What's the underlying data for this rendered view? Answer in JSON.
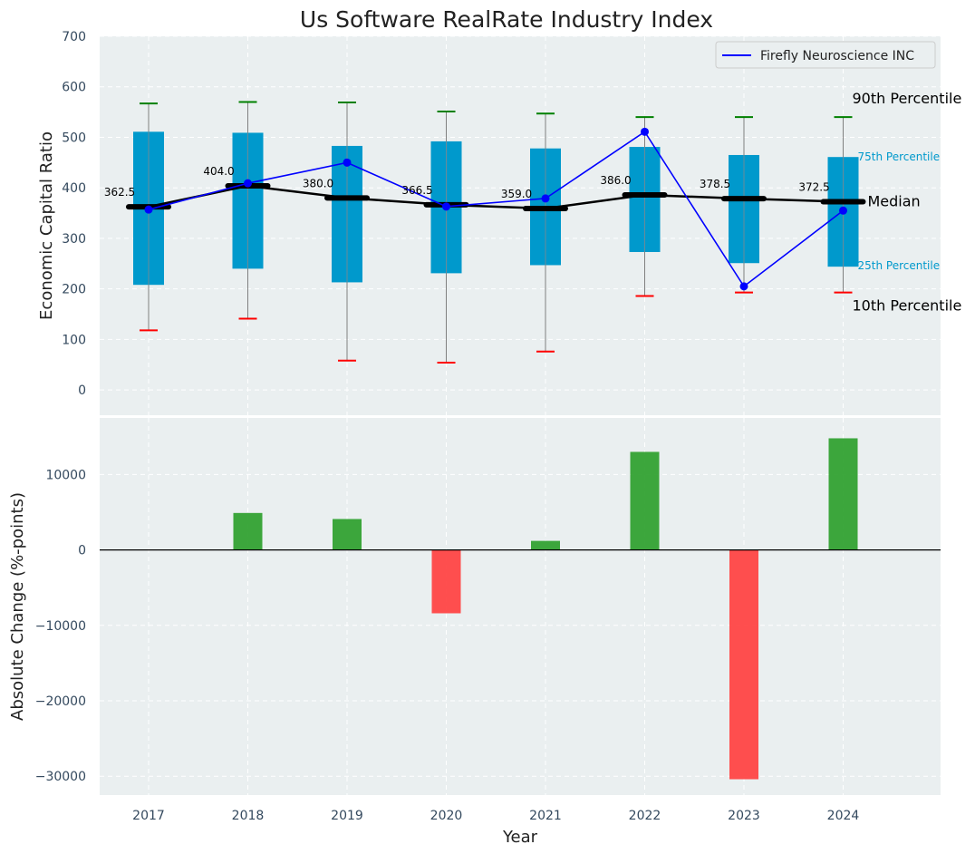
{
  "chart_data": [
    {
      "type": "box",
      "title": "Us Software RealRate Industry Index",
      "xlabel": "",
      "ylabel": "Economic Capital Ratio",
      "ylim": [
        -50,
        700
      ],
      "yticks": [
        0,
        100,
        200,
        300,
        400,
        500,
        600,
        700
      ],
      "categories": [
        "2017",
        "2018",
        "2019",
        "2020",
        "2021",
        "2022",
        "2023",
        "2024"
      ],
      "p10": [
        118,
        141,
        58,
        54,
        76,
        186,
        193,
        193
      ],
      "p25": [
        208,
        240,
        213,
        231,
        247,
        273,
        251,
        244
      ],
      "median": [
        362.5,
        404.0,
        380.0,
        366.5,
        359.0,
        386.0,
        378.5,
        372.5
      ],
      "median_labels": [
        "362.5",
        "404.0",
        "380.0",
        "366.5",
        "359.0",
        "386.0",
        "378.5",
        "372.5"
      ],
      "p75": [
        511,
        509,
        483,
        492,
        478,
        481,
        465,
        461
      ],
      "p90": [
        567,
        570,
        569,
        551,
        547,
        540,
        540,
        540
      ],
      "series": [
        {
          "name": "Firefly Neuroscience INC",
          "values": [
            357,
            409,
            450,
            363,
            379,
            511,
            205,
            355
          ],
          "color": "#0000ff"
        }
      ],
      "percentile_labels": {
        "p90": "90th Percentile",
        "p75": "75th Percentile",
        "median": "Median",
        "p25": "25th Percentile",
        "p10": "10th Percentile"
      },
      "legend_position": "upper-right",
      "grid": true
    },
    {
      "type": "bar",
      "xlabel": "Year",
      "ylabel": "Absolute Change (%-points)",
      "ylim": [
        -32500,
        17500
      ],
      "yticks": [
        -30000,
        -20000,
        -10000,
        0,
        10000
      ],
      "ytick_labels": [
        "−30000",
        "−20000",
        "−10000",
        "0",
        "10000"
      ],
      "categories": [
        "2017",
        "2018",
        "2019",
        "2020",
        "2021",
        "2022",
        "2023",
        "2024"
      ],
      "values": [
        0,
        4900,
        4100,
        -8400,
        1200,
        13000,
        -30400,
        14800
      ],
      "grid": true
    }
  ],
  "colors": {
    "box_fill": "#0099cc",
    "panel_bg": "#eaeff0",
    "median_line": "#000000",
    "p90_cap": "#008000",
    "p10_cap": "#ff0000",
    "whisker": "#808080",
    "pos_bar": "#2ca02c",
    "neg_bar": "#ff4040"
  }
}
